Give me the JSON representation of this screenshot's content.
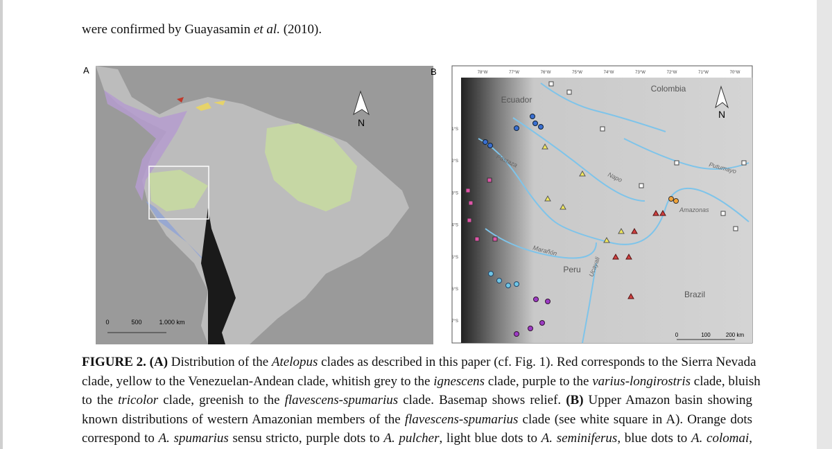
{
  "header": {
    "text_runs": [
      "were confirmed by Guayasamin ",
      "et al.",
      " (2010)."
    ]
  },
  "figure": {
    "panel_a": {
      "label": "A",
      "north": "N",
      "scale_labels": [
        "0",
        "500",
        "1.000 km"
      ]
    },
    "panel_b": {
      "label": "B",
      "north": "N",
      "longitudes": [
        "78°W",
        "77°W",
        "76°W",
        "75°W",
        "74°W",
        "73°W",
        "72°W",
        "71°W",
        "70°W"
      ],
      "latitudes": [
        "1°S",
        "2°S",
        "3°S",
        "4°S",
        "5°S",
        "6°S",
        "7°S"
      ],
      "countries": [
        "Ecuador",
        "Colombia",
        "Peru",
        "Brazil"
      ],
      "rivers": [
        "Pastaza",
        "Napo",
        "Marañón",
        "Ucayali",
        "Putumayo",
        "Amazonas"
      ],
      "scale_labels": [
        "0",
        "100",
        "200 km"
      ]
    }
  },
  "caption": {
    "lines": [
      [
        "FIGURE 2. (A)",
        " Distribution of the ",
        "Atelopus",
        " clades as described in this paper (cf. Fig. 1). Red corresponds to the Sierra Nevada"
      ],
      [
        "clade, yellow to the Venezuelan-Andean clade, whitish grey to the ",
        "ignescens",
        " clade, purple to the ",
        "varius-longirostris",
        " clade, bluish"
      ],
      [
        "to the ",
        "tricolor",
        " clade, greenish to the ",
        "flavescens-spumarius",
        " clade. Basemap shows relief. ",
        "(B)",
        " Upper Amazon basin showing"
      ],
      [
        "known distributions of western Amazonian members of the ",
        "flavescens-spumarius",
        " clade (see white square in A). Orange dots"
      ],
      [
        "correspond to ",
        "A. spumarius",
        " sensu stricto, purple dots to ",
        "A. pulcher",
        ", light blue dots to ",
        "A. seminiferus",
        ", blue dots to ",
        "A. colomai",
        ","
      ]
    ]
  }
}
